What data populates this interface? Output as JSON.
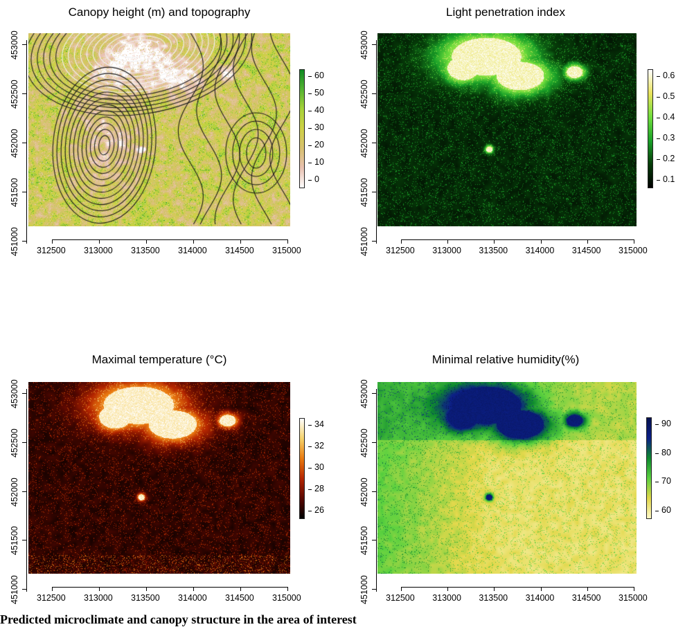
{
  "panels": [
    {
      "title": "Canopy height (m) and topography",
      "legend_ticks": [
        "60",
        "50",
        "40",
        "30",
        "20",
        "10",
        "0"
      ],
      "legend_colors": [
        "#ffffff",
        "#e9c2b2",
        "#d8c170",
        "#cfd147",
        "#a8d33a",
        "#55b432",
        "#0f8a23"
      ],
      "colormap": "canopy",
      "has_contours": true
    },
    {
      "title": "Light penetration index",
      "legend_ticks": [
        "0.6",
        "0.5",
        "0.4",
        "0.3",
        "0.2",
        "0.1"
      ],
      "legend_colors": [
        "#000000",
        "#063c09",
        "#1aa128",
        "#6fdd3c",
        "#e9e25a",
        "#ffffff"
      ],
      "colormap": "light",
      "has_contours": false
    },
    {
      "title": "Maximal temperature (°C)",
      "legend_ticks": [
        "34",
        "32",
        "30",
        "28",
        "26"
      ],
      "legend_colors": [
        "#000000",
        "#5a0800",
        "#b52600",
        "#ea7a10",
        "#f6d36b",
        "#ffffff"
      ],
      "colormap": "temp",
      "has_contours": false
    },
    {
      "title": "Minimal relative humidity(%)",
      "legend_ticks": [
        "90",
        "80",
        "70",
        "60"
      ],
      "legend_colors": [
        "#fff9c8",
        "#e2d84b",
        "#5bd13f",
        "#0e8a2f",
        "#0c1f86",
        "#06124f"
      ],
      "colormap": "humid",
      "has_contours": false
    }
  ],
  "x_ticks": [
    "312500",
    "313000",
    "313500",
    "314000",
    "314500",
    "315000"
  ],
  "y_ticks": [
    "453000",
    "452500",
    "452000",
    "451500",
    "451000"
  ],
  "caption": "Predicted microclimate and canopy structure in the area of interest"
}
